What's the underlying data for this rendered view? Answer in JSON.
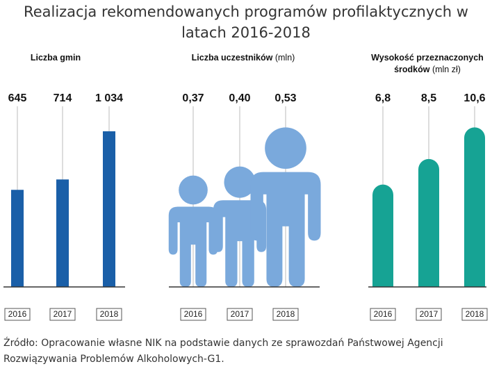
{
  "title": "Realizacja rekomendowanych programów profilaktycznych w latach 2016-2018",
  "chart_data": [
    {
      "type": "bar",
      "title": "Liczba gmin",
      "categories": [
        "2016",
        "2017",
        "2018"
      ],
      "values": [
        645,
        714,
        1034
      ],
      "value_labels": [
        "645",
        "714",
        "1 034"
      ],
      "color": "#1a5fa8",
      "ylim": [
        0,
        1200
      ]
    },
    {
      "type": "pictogram",
      "title": "Liczba uczestników",
      "unit": "(mln)",
      "categories": [
        "2016",
        "2017",
        "2018"
      ],
      "values": [
        0.37,
        0.4,
        0.53
      ],
      "value_labels": [
        "0,37",
        "0,40",
        "0,53"
      ],
      "color": "#7aa9dc",
      "ylim": [
        0,
        0.6
      ]
    },
    {
      "type": "bar",
      "title": "Wysokość przeznaczonych środków",
      "unit": "(mln zł)",
      "categories": [
        "2016",
        "2017",
        "2018"
      ],
      "values": [
        6.8,
        8.5,
        10.6
      ],
      "value_labels": [
        "6,8",
        "8,5",
        "10,6"
      ],
      "color": "#16a394",
      "bar_shape": "rounded",
      "ylim": [
        0,
        12
      ]
    }
  ],
  "source": "Źródło: Opracowanie własne NIK na podstawie danych ze sprawozdań Państwowej Agencji Rozwiązywania Problemów Alkoholowych-G1."
}
